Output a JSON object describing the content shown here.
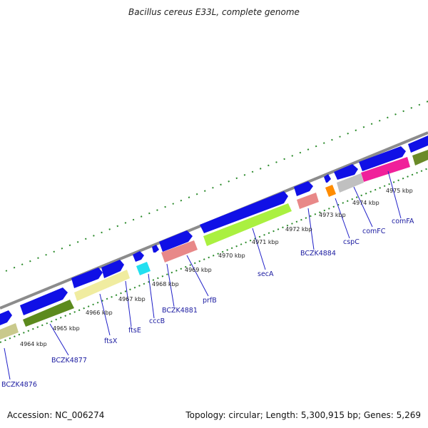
{
  "title": "Bacillus cereus E33L, complete genome",
  "accession": "Accession: NC_006274",
  "topology": "Topology: circular; Length: 5,300,915 bp; Genes: 5,269",
  "colors": {
    "backbone": "#8c8c8c",
    "forward_gene": "#1010e6",
    "tick": "#2a8a2a",
    "label": "#1a1aa0",
    "connector": "#2020c8"
  },
  "kbp_labels": [
    "4964 kbp",
    "4965 kbp",
    "4966 kbp",
    "4967 kbp",
    "4968 kbp",
    "4969 kbp",
    "4970 kbp",
    "4971 kbp",
    "4972 kbp",
    "4973 kbp",
    "4974 kbp",
    "4975 kbp"
  ],
  "gene_labels": [
    "BCZK4876",
    "BCZK4877",
    "ftsX",
    "ftsE",
    "cccB",
    "BCZK4881",
    "prfB",
    "secA",
    "BCZK4884",
    "cspC",
    "comFC",
    "comFA"
  ]
}
